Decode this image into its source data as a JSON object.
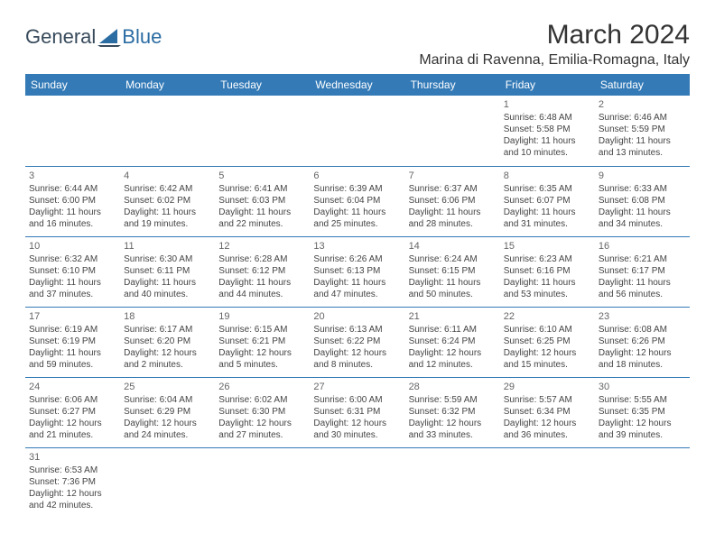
{
  "logo": {
    "text1": "General",
    "text2": "Blue",
    "color1": "#374a5b",
    "color2": "#2b6ca3",
    "sail_color": "#2b6ca3"
  },
  "title": "March 2024",
  "location": "Marina di Ravenna, Emilia-Romagna, Italy",
  "header_bg": "#337ab7",
  "header_fg": "#ffffff",
  "grid_line": "#337ab7",
  "weekdays": [
    "Sunday",
    "Monday",
    "Tuesday",
    "Wednesday",
    "Thursday",
    "Friday",
    "Saturday"
  ],
  "first_weekday_index": 5,
  "days": [
    {
      "n": 1,
      "sunrise": "6:48 AM",
      "sunset": "5:58 PM",
      "daylight": "11 hours and 10 minutes."
    },
    {
      "n": 2,
      "sunrise": "6:46 AM",
      "sunset": "5:59 PM",
      "daylight": "11 hours and 13 minutes."
    },
    {
      "n": 3,
      "sunrise": "6:44 AM",
      "sunset": "6:00 PM",
      "daylight": "11 hours and 16 minutes."
    },
    {
      "n": 4,
      "sunrise": "6:42 AM",
      "sunset": "6:02 PM",
      "daylight": "11 hours and 19 minutes."
    },
    {
      "n": 5,
      "sunrise": "6:41 AM",
      "sunset": "6:03 PM",
      "daylight": "11 hours and 22 minutes."
    },
    {
      "n": 6,
      "sunrise": "6:39 AM",
      "sunset": "6:04 PM",
      "daylight": "11 hours and 25 minutes."
    },
    {
      "n": 7,
      "sunrise": "6:37 AM",
      "sunset": "6:06 PM",
      "daylight": "11 hours and 28 minutes."
    },
    {
      "n": 8,
      "sunrise": "6:35 AM",
      "sunset": "6:07 PM",
      "daylight": "11 hours and 31 minutes."
    },
    {
      "n": 9,
      "sunrise": "6:33 AM",
      "sunset": "6:08 PM",
      "daylight": "11 hours and 34 minutes."
    },
    {
      "n": 10,
      "sunrise": "6:32 AM",
      "sunset": "6:10 PM",
      "daylight": "11 hours and 37 minutes."
    },
    {
      "n": 11,
      "sunrise": "6:30 AM",
      "sunset": "6:11 PM",
      "daylight": "11 hours and 40 minutes."
    },
    {
      "n": 12,
      "sunrise": "6:28 AM",
      "sunset": "6:12 PM",
      "daylight": "11 hours and 44 minutes."
    },
    {
      "n": 13,
      "sunrise": "6:26 AM",
      "sunset": "6:13 PM",
      "daylight": "11 hours and 47 minutes."
    },
    {
      "n": 14,
      "sunrise": "6:24 AM",
      "sunset": "6:15 PM",
      "daylight": "11 hours and 50 minutes."
    },
    {
      "n": 15,
      "sunrise": "6:23 AM",
      "sunset": "6:16 PM",
      "daylight": "11 hours and 53 minutes."
    },
    {
      "n": 16,
      "sunrise": "6:21 AM",
      "sunset": "6:17 PM",
      "daylight": "11 hours and 56 minutes."
    },
    {
      "n": 17,
      "sunrise": "6:19 AM",
      "sunset": "6:19 PM",
      "daylight": "11 hours and 59 minutes."
    },
    {
      "n": 18,
      "sunrise": "6:17 AM",
      "sunset": "6:20 PM",
      "daylight": "12 hours and 2 minutes."
    },
    {
      "n": 19,
      "sunrise": "6:15 AM",
      "sunset": "6:21 PM",
      "daylight": "12 hours and 5 minutes."
    },
    {
      "n": 20,
      "sunrise": "6:13 AM",
      "sunset": "6:22 PM",
      "daylight": "12 hours and 8 minutes."
    },
    {
      "n": 21,
      "sunrise": "6:11 AM",
      "sunset": "6:24 PM",
      "daylight": "12 hours and 12 minutes."
    },
    {
      "n": 22,
      "sunrise": "6:10 AM",
      "sunset": "6:25 PM",
      "daylight": "12 hours and 15 minutes."
    },
    {
      "n": 23,
      "sunrise": "6:08 AM",
      "sunset": "6:26 PM",
      "daylight": "12 hours and 18 minutes."
    },
    {
      "n": 24,
      "sunrise": "6:06 AM",
      "sunset": "6:27 PM",
      "daylight": "12 hours and 21 minutes."
    },
    {
      "n": 25,
      "sunrise": "6:04 AM",
      "sunset": "6:29 PM",
      "daylight": "12 hours and 24 minutes."
    },
    {
      "n": 26,
      "sunrise": "6:02 AM",
      "sunset": "6:30 PM",
      "daylight": "12 hours and 27 minutes."
    },
    {
      "n": 27,
      "sunrise": "6:00 AM",
      "sunset": "6:31 PM",
      "daylight": "12 hours and 30 minutes."
    },
    {
      "n": 28,
      "sunrise": "5:59 AM",
      "sunset": "6:32 PM",
      "daylight": "12 hours and 33 minutes."
    },
    {
      "n": 29,
      "sunrise": "5:57 AM",
      "sunset": "6:34 PM",
      "daylight": "12 hours and 36 minutes."
    },
    {
      "n": 30,
      "sunrise": "5:55 AM",
      "sunset": "6:35 PM",
      "daylight": "12 hours and 39 minutes."
    },
    {
      "n": 31,
      "sunrise": "6:53 AM",
      "sunset": "7:36 PM",
      "daylight": "12 hours and 42 minutes."
    }
  ],
  "labels": {
    "sunrise": "Sunrise:",
    "sunset": "Sunset:",
    "daylight": "Daylight:"
  }
}
